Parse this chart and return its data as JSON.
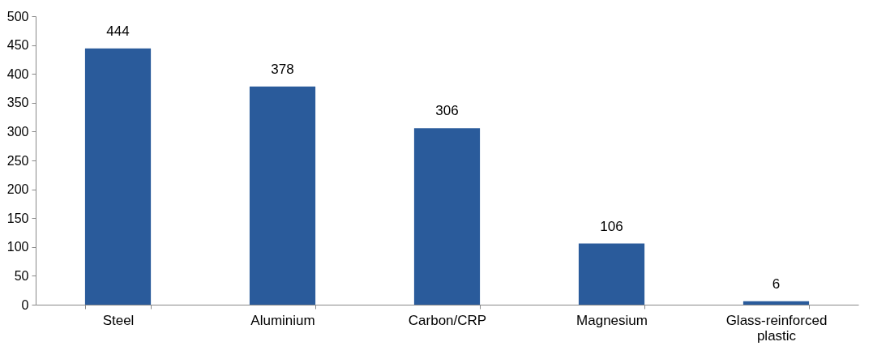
{
  "chart_data": {
    "type": "bar",
    "categories": [
      "Steel",
      "Aluminium",
      "Carbon/CRP",
      "Magnesium",
      "Glass-reinforced plastic"
    ],
    "values": [
      444,
      378,
      306,
      106,
      6
    ],
    "color": "#2a5b9b",
    "ylim": [
      0,
      500
    ],
    "yticks": [
      0,
      50,
      100,
      150,
      200,
      250,
      300,
      350,
      400,
      450,
      500
    ],
    "grid": false,
    "data_labels": true
  }
}
